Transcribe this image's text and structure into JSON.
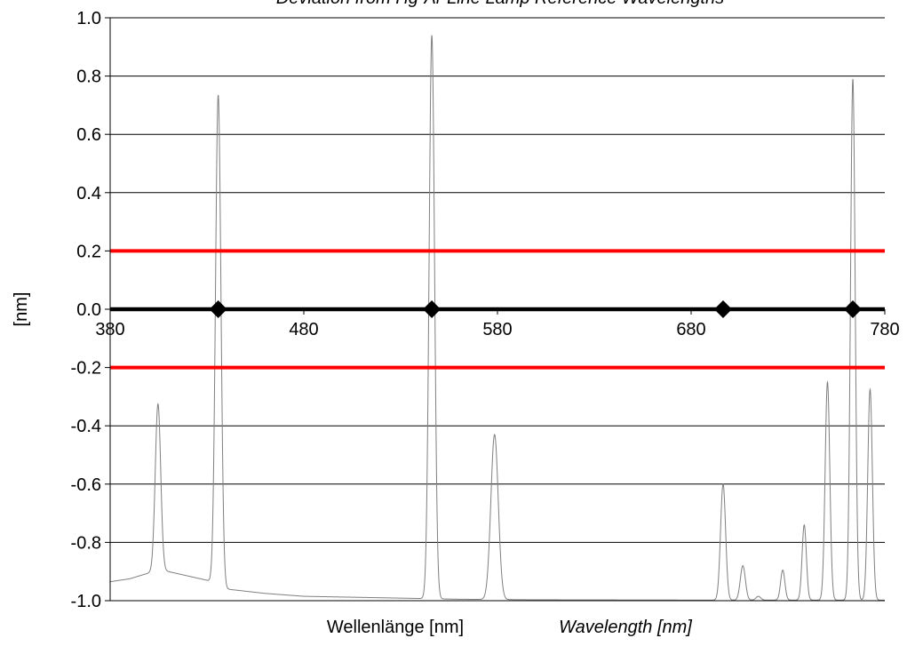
{
  "chart_data": {
    "type": "line",
    "title": "Deviation from Hg-Ar Line Lamp Reference Wavelengths",
    "xlabel": "Wellenlänge [nm]",
    "xlabel_secondary": "Wavelength [nm]",
    "ylabel": "[nm]",
    "xlim": [
      380,
      780
    ],
    "ylim": [
      -1.0,
      1.0
    ],
    "x_ticks": [
      380,
      480,
      580,
      680,
      780
    ],
    "y_ticks": [
      "1.0",
      "0.8",
      "0.6",
      "0.4",
      "0.2",
      "0.0",
      "-0.2",
      "-0.4",
      "-0.6",
      "-0.8",
      "-1.0"
    ],
    "grid": "horizontal",
    "legend": "none",
    "reference_lines": [
      {
        "y": 0.2,
        "color": "#ff0000"
      },
      {
        "y": -0.2,
        "color": "#ff0000"
      },
      {
        "y": 0.0,
        "color": "#000000"
      }
    ],
    "series": [
      {
        "kind": "markers",
        "marker": "diamond",
        "color": "#000000",
        "x": [
          435.8,
          546.1,
          696.5,
          763.5
        ],
        "y": [
          0.0,
          0.0,
          0.0,
          0.0
        ]
      },
      {
        "kind": "spectrum",
        "color": "#7f7f7f",
        "baseline": [
          [
            380,
            -0.935
          ],
          [
            390,
            -0.925
          ],
          [
            400,
            -0.905
          ],
          [
            405,
            -0.895
          ],
          [
            410,
            -0.9
          ],
          [
            420,
            -0.915
          ],
          [
            430,
            -0.93
          ],
          [
            440,
            -0.96
          ],
          [
            460,
            -0.975
          ],
          [
            480,
            -0.985
          ],
          [
            520,
            -0.99
          ],
          [
            560,
            -0.995
          ],
          [
            600,
            -0.997
          ],
          [
            680,
            -0.998
          ],
          [
            780,
            -0.998
          ]
        ],
        "peaks": [
          {
            "x": 404.7,
            "y": -0.325,
            "width": 1.4
          },
          {
            "x": 435.8,
            "y": 0.735,
            "width": 1.4
          },
          {
            "x": 546.1,
            "y": 0.94,
            "width": 1.4
          },
          {
            "x": 578.5,
            "y": -0.43,
            "width": 1.9
          },
          {
            "x": 696.5,
            "y": -0.6,
            "width": 1.3
          },
          {
            "x": 706.7,
            "y": -0.88,
            "width": 1.3
          },
          {
            "x": 714.7,
            "y": -0.985,
            "width": 1.2
          },
          {
            "x": 727.3,
            "y": -0.895,
            "width": 1.1
          },
          {
            "x": 738.4,
            "y": -0.74,
            "width": 1.1
          },
          {
            "x": 750.4,
            "y": -0.25,
            "width": 1.2
          },
          {
            "x": 763.5,
            "y": 0.79,
            "width": 1.2
          },
          {
            "x": 772.4,
            "y": -0.275,
            "width": 1.2
          }
        ]
      }
    ]
  }
}
